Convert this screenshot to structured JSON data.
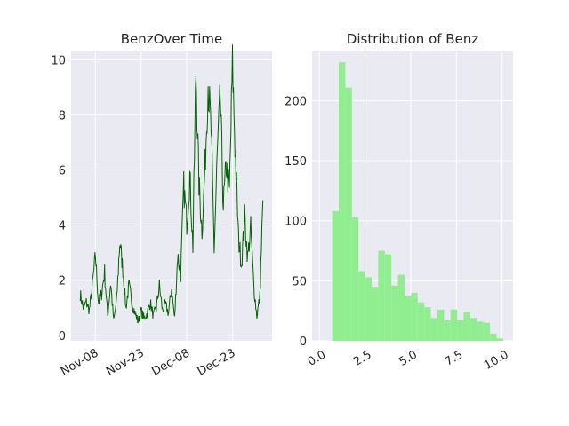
{
  "chart_data": [
    {
      "type": "line",
      "title": "BenzOver Time",
      "xlabel": "",
      "ylabel": "",
      "x_tick_labels": [
        "Nov-08",
        "Nov-23",
        "Dec-08",
        "Dec-23"
      ],
      "x_tick_dates": [
        "2017-11-08",
        "2017-11-23",
        "2017-12-08",
        "2017-12-23"
      ],
      "x_range": [
        "2017-10-31",
        "2018-01-05"
      ],
      "y_ticks": [
        0,
        2,
        4,
        6,
        8,
        10
      ],
      "ylim": [
        -0.2,
        10.3
      ],
      "grid": true,
      "color": "#006400",
      "series": [
        {
          "x": [
            "2017-11-03",
            "2017-11-04",
            "2017-11-05",
            "2017-11-06",
            "2017-11-07",
            "2017-11-08",
            "2017-11-09",
            "2017-11-10",
            "2017-11-11",
            "2017-11-12",
            "2017-11-13",
            "2017-11-14",
            "2017-11-15",
            "2017-11-16",
            "2017-11-17",
            "2017-11-18",
            "2017-11-19",
            "2017-11-20",
            "2017-11-21",
            "2017-11-22",
            "2017-11-23",
            "2017-11-24",
            "2017-11-25",
            "2017-11-26",
            "2017-11-27",
            "2017-11-28",
            "2017-11-29",
            "2017-11-30",
            "2017-12-01",
            "2017-12-02",
            "2017-12-03",
            "2017-12-04",
            "2017-12-05",
            "2017-12-06",
            "2017-12-07",
            "2017-12-08",
            "2017-12-09",
            "2017-12-10",
            "2017-12-11",
            "2017-12-12",
            "2017-12-13",
            "2017-12-14",
            "2017-12-15",
            "2017-12-16",
            "2017-12-17",
            "2017-12-18",
            "2017-12-19",
            "2017-12-20",
            "2017-12-21",
            "2017-12-22",
            "2017-12-23",
            "2017-12-24",
            "2017-12-25",
            "2017-12-26",
            "2017-12-27",
            "2017-12-28",
            "2017-12-29",
            "2017-12-30",
            "2017-12-31",
            "2018-01-01",
            "2018-01-02"
          ],
          "values": [
            1.5,
            1.0,
            1.2,
            0.9,
            1.8,
            2.9,
            1.2,
            1.5,
            2.3,
            0.7,
            1.9,
            0.5,
            1.3,
            3.4,
            2.4,
            1.0,
            1.8,
            1.2,
            0.8,
            0.5,
            0.9,
            0.6,
            0.8,
            1.2,
            0.7,
            1.0,
            1.8,
            0.9,
            1.1,
            0.8,
            1.7,
            0.6,
            2.9,
            2.2,
            5.4,
            4.1,
            5.8,
            3.2,
            9.6,
            5.5,
            3.8,
            6.1,
            9.2,
            7.4,
            3.1,
            6.5,
            8.6,
            4.7,
            6.2,
            5.2,
            9.8,
            6.4,
            3.5,
            2.6,
            4.3,
            2.8,
            3.9,
            1.8,
            0.7,
            1.4,
            4.9
          ]
        }
      ]
    },
    {
      "type": "bar",
      "title": "Distribution of Benz",
      "xlabel": "",
      "ylabel": "",
      "x_ticks": [
        "0.0",
        "2.5",
        "5.0",
        "7.5",
        "10.0"
      ],
      "x_tick_values": [
        0,
        2.5,
        5,
        7.5,
        10
      ],
      "y_ticks": [
        0,
        50,
        100,
        150,
        200
      ],
      "xlim": [
        -0.4,
        10.6
      ],
      "ylim": [
        0,
        241
      ],
      "grid": true,
      "color": "#90ee90",
      "bin_edges": [
        0.7,
        1.06,
        1.42,
        1.78,
        2.14,
        2.5,
        2.86,
        3.22,
        3.58,
        3.94,
        4.3,
        4.66,
        5.02,
        5.38,
        5.74,
        6.1,
        6.46,
        6.82,
        7.18,
        7.54,
        7.9,
        8.26,
        8.62,
        8.98,
        9.34,
        9.7,
        10.06
      ],
      "values": [
        108,
        232,
        211,
        103,
        58,
        53,
        45,
        75,
        72,
        46,
        55,
        37,
        40,
        32,
        28,
        19,
        26,
        17,
        26,
        17,
        24,
        19,
        16,
        15,
        6,
        2
      ]
    }
  ]
}
